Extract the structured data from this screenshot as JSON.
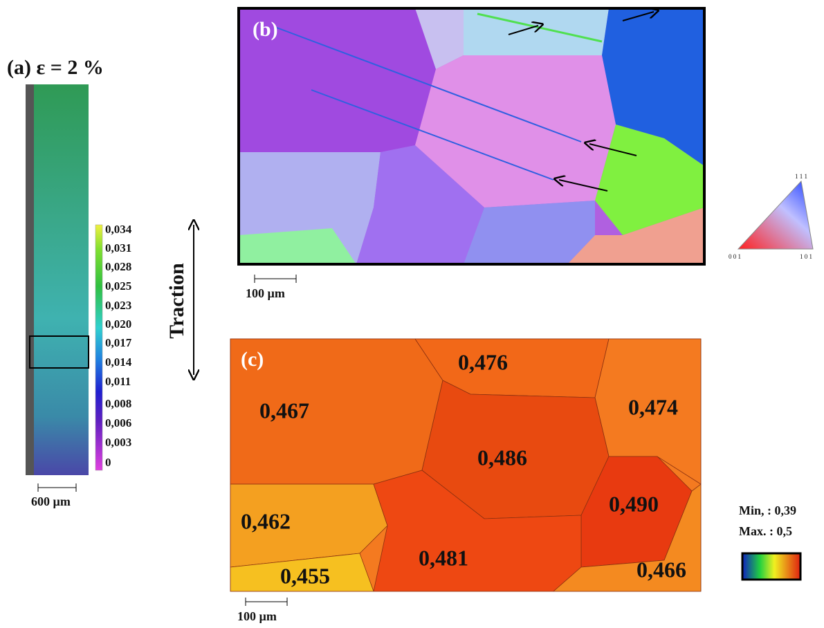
{
  "panel_a": {
    "label": "(a) ε = 2 %",
    "colorbar_labels": [
      "0,034",
      "0,031",
      "0,028",
      "0,025",
      "0,023",
      "0,020",
      "0,017",
      "0,014",
      "0,011",
      "0,008",
      "0,006",
      "0,003",
      "0"
    ],
    "scale_bar": "600 µm"
  },
  "traction": "Traction",
  "panel_b": {
    "label": "(b)",
    "scale_bar": "100 µm",
    "triangle_labels": [
      "1 1 1",
      "0 0 1",
      "1 0 1"
    ]
  },
  "panel_c": {
    "label": "(c)",
    "grain_labels": [
      "0,476",
      "0,467",
      "0,474",
      "0,486",
      "0,490",
      "0,462",
      "0,481",
      "0,455",
      "0,466"
    ],
    "scale_bar": "100 µm",
    "min_label": "Min, : 0,39",
    "max_label": "Max. : 0,5"
  }
}
